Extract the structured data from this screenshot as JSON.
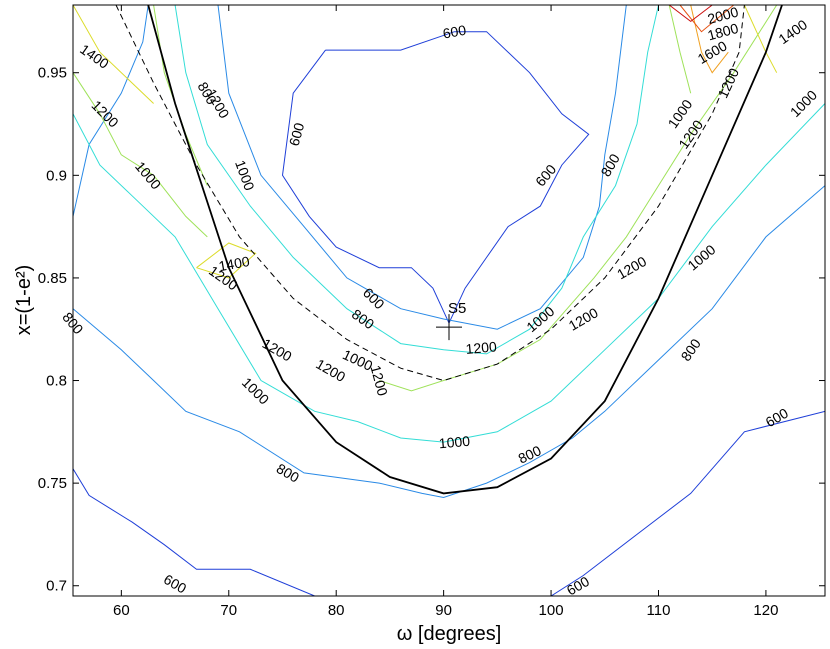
{
  "chart_data": {
    "type": "contour",
    "xlabel": "ω [degrees]",
    "ylabel": "x=(1-e²)",
    "xlim": [
      55.5,
      125.5
    ],
    "ylim": [
      0.695,
      0.983
    ],
    "xticks": [
      60,
      70,
      80,
      90,
      100,
      110,
      120
    ],
    "yticks": [
      0.7,
      0.75,
      0.8,
      0.85,
      0.9,
      0.95
    ],
    "grid": false,
    "colors": {
      "600": "#1f3fd8",
      "800": "#2a8ae6",
      "1000": "#33ddd6",
      "1200": "#9fe25a",
      "1400": "#dcdc2a",
      "1600": "#f0a020",
      "1800": "#e65010",
      "2000": "#cc1010"
    },
    "contours": [
      {
        "level": 600,
        "segments": [
          [
            [
              79,
              0.961
            ],
            [
              86,
              0.961
            ],
            [
              91,
              0.97
            ],
            [
              94,
              0.97
            ],
            [
              98,
              0.95
            ],
            [
              101,
              0.93
            ],
            [
              103.5,
              0.92
            ],
            [
              101,
              0.905
            ],
            [
              99,
              0.885
            ],
            [
              96,
              0.875
            ],
            [
              94,
              0.86
            ],
            [
              92,
              0.845
            ],
            [
              90.5,
              0.828
            ]
          ],
          [
            [
              90.5,
              0.828
            ],
            [
              89,
              0.845
            ],
            [
              87,
              0.855
            ],
            [
              84,
              0.855
            ],
            [
              80,
              0.865
            ],
            [
              77.5,
              0.88
            ],
            [
              75,
              0.9
            ],
            [
              76,
              0.94
            ],
            [
              79,
              0.961
            ]
          ],
          [
            [
              55.5,
              0.757
            ],
            [
              57,
              0.744
            ],
            [
              61,
              0.731
            ],
            [
              64,
              0.72
            ],
            [
              67,
              0.708
            ],
            [
              72,
              0.708
            ],
            [
              78,
              0.695
            ]
          ],
          [
            [
              100,
              0.695
            ],
            [
              103,
              0.705
            ],
            [
              108,
              0.725
            ],
            [
              113,
              0.745
            ],
            [
              118,
              0.775
            ],
            [
              125.5,
              0.785
            ]
          ]
        ]
      },
      {
        "level": 800,
        "segments": [
          [
            [
              62.5,
              0.983
            ],
            [
              62,
              0.965
            ],
            [
              60,
              0.94
            ],
            [
              57,
              0.915
            ],
            [
              55.5,
              0.88
            ]
          ],
          [
            [
              55.5,
              0.835
            ],
            [
              60,
              0.815
            ],
            [
              63,
              0.8
            ],
            [
              66,
              0.785
            ],
            [
              71,
              0.775
            ],
            [
              77,
              0.755
            ],
            [
              84,
              0.75
            ],
            [
              88,
              0.745
            ],
            [
              90,
              0.743
            ],
            [
              94,
              0.75
            ],
            [
              98,
              0.76
            ],
            [
              102,
              0.772
            ],
            [
              105,
              0.785
            ],
            [
              110,
              0.81
            ],
            [
              115,
              0.835
            ],
            [
              120,
              0.87
            ],
            [
              125.5,
              0.895
            ]
          ],
          [
            [
              69,
              0.983
            ],
            [
              70,
              0.94
            ],
            [
              73,
              0.9
            ],
            [
              77,
              0.875
            ],
            [
              81,
              0.85
            ],
            [
              86,
              0.835
            ],
            [
              90,
              0.83
            ],
            [
              95,
              0.825
            ],
            [
              99,
              0.835
            ],
            [
              103,
              0.86
            ],
            [
              104.5,
              0.885
            ],
            [
              105,
              0.91
            ],
            [
              106,
              0.94
            ],
            [
              107,
              0.983
            ]
          ]
        ]
      },
      {
        "level": 1000,
        "segments": [
          [
            [
              55.5,
              0.93
            ],
            [
              58,
              0.905
            ],
            [
              61,
              0.89
            ],
            [
              65,
              0.87
            ],
            [
              69,
              0.835
            ],
            [
              73,
              0.8
            ],
            [
              78,
              0.785
            ],
            [
              82,
              0.78
            ],
            [
              86,
              0.772
            ],
            [
              90,
              0.77
            ],
            [
              95,
              0.775
            ],
            [
              100,
              0.79
            ],
            [
              105,
              0.815
            ],
            [
              110,
              0.84
            ],
            [
              115,
              0.875
            ],
            [
              120,
              0.905
            ],
            [
              125.5,
              0.935
            ]
          ],
          [
            [
              65,
              0.983
            ],
            [
              66,
              0.95
            ],
            [
              68,
              0.915
            ],
            [
              72,
              0.885
            ],
            [
              76,
              0.86
            ],
            [
              81,
              0.835
            ],
            [
              86,
              0.818
            ],
            [
              90,
              0.815
            ],
            [
              94,
              0.813
            ],
            [
              98,
              0.825
            ],
            [
              101,
              0.845
            ],
            [
              103,
              0.87
            ],
            [
              106,
              0.895
            ],
            [
              108,
              0.925
            ],
            [
              109,
              0.96
            ],
            [
              110,
              0.983
            ]
          ]
        ]
      },
      {
        "level": 1200,
        "segments": [
          [
            [
              55.5,
              0.95
            ],
            [
              58,
              0.93
            ],
            [
              60,
              0.91
            ],
            [
              63,
              0.9
            ],
            [
              66,
              0.88
            ],
            [
              68,
              0.87
            ]
          ],
          [
            [
              63,
              0.983
            ],
            [
              64,
              0.95
            ],
            [
              66,
              0.92
            ],
            [
              68,
              0.895
            ]
          ],
          [
            [
              84,
              0.8
            ],
            [
              87,
              0.795
            ],
            [
              90,
              0.8
            ],
            [
              95,
              0.808
            ],
            [
              99,
              0.82
            ],
            [
              102,
              0.838
            ],
            [
              104,
              0.85
            ],
            [
              107,
              0.87
            ],
            [
              110,
              0.895
            ],
            [
              113,
              0.92
            ],
            [
              117,
              0.95
            ],
            [
              121,
              0.983
            ]
          ],
          [
            [
              111,
              0.983
            ],
            [
              112,
              0.96
            ],
            [
              113,
              0.94
            ]
          ]
        ]
      },
      {
        "level": 1400,
        "segments": [
          [
            [
              55.5,
              0.983
            ],
            [
              58,
              0.96
            ],
            [
              61,
              0.945
            ],
            [
              63,
              0.935
            ]
          ],
          [
            [
              67,
              0.855
            ],
            [
              70,
              0.867
            ],
            [
              72.5,
              0.862
            ],
            [
              70,
              0.85
            ],
            [
              67,
              0.855
            ]
          ],
          [
            [
              118,
              0.983
            ],
            [
              120,
              0.96
            ],
            [
              121,
              0.95
            ]
          ]
        ]
      },
      {
        "level": 1600,
        "segments": [
          [
            [
              113,
              0.983
            ],
            [
              114,
              0.96
            ],
            [
              115,
              0.95
            ],
            [
              116.5,
              0.96
            ]
          ]
        ]
      },
      {
        "level": 1800,
        "segments": [
          [
            [
              112,
              0.983
            ],
            [
              114,
              0.97
            ],
            [
              117,
              0.983
            ]
          ]
        ]
      },
      {
        "level": 2000,
        "segments": [
          [
            [
              111,
              0.983
            ],
            [
              113,
              0.975
            ],
            [
              115,
              0.983
            ]
          ]
        ]
      }
    ],
    "contour_labels": [
      {
        "text": "600",
        "x": 91,
        "y": 0.97,
        "rot": -10
      },
      {
        "text": "600",
        "x": 76.3,
        "y": 0.92,
        "rot": -75
      },
      {
        "text": "600",
        "x": 99.5,
        "y": 0.9,
        "rot": -50
      },
      {
        "text": "600",
        "x": 83.5,
        "y": 0.84,
        "rot": 45
      },
      {
        "text": "600",
        "x": 65,
        "y": 0.701,
        "rot": 30
      },
      {
        "text": "600",
        "x": 102.5,
        "y": 0.7,
        "rot": -30
      },
      {
        "text": "600",
        "x": 121,
        "y": 0.782,
        "rot": -30
      },
      {
        "text": "800",
        "x": 68,
        "y": 0.94,
        "rot": 60
      },
      {
        "text": "800",
        "x": 55.5,
        "y": 0.828,
        "rot": 50
      },
      {
        "text": "800",
        "x": 75.5,
        "y": 0.755,
        "rot": 30
      },
      {
        "text": "800",
        "x": 98,
        "y": 0.764,
        "rot": -25
      },
      {
        "text": "800",
        "x": 113,
        "y": 0.815,
        "rot": -55
      },
      {
        "text": "800",
        "x": 82.5,
        "y": 0.83,
        "rot": 35
      },
      {
        "text": "800",
        "x": 105.5,
        "y": 0.905,
        "rot": -60
      },
      {
        "text": "1000",
        "x": 62.5,
        "y": 0.9,
        "rot": 50
      },
      {
        "text": "1000",
        "x": 72.5,
        "y": 0.795,
        "rot": 45
      },
      {
        "text": "1000",
        "x": 91,
        "y": 0.77,
        "rot": -5
      },
      {
        "text": "1000",
        "x": 114,
        "y": 0.86,
        "rot": -40
      },
      {
        "text": "1000",
        "x": 71.5,
        "y": 0.9,
        "rot": 70
      },
      {
        "text": "1000",
        "x": 82,
        "y": 0.81,
        "rot": 25
      },
      {
        "text": "1000",
        "x": 99,
        "y": 0.83,
        "rot": -40
      },
      {
        "text": "1000",
        "x": 112,
        "y": 0.93,
        "rot": -55
      },
      {
        "text": "1000",
        "x": 123.5,
        "y": 0.935,
        "rot": -45
      },
      {
        "text": "1200",
        "x": 58.5,
        "y": 0.93,
        "rot": 45
      },
      {
        "text": "1200",
        "x": 69,
        "y": 0.935,
        "rot": 60
      },
      {
        "text": "1200",
        "x": 69.5,
        "y": 0.85,
        "rot": 35
      },
      {
        "text": "1200",
        "x": 74.5,
        "y": 0.815,
        "rot": 30
      },
      {
        "text": "1200",
        "x": 79.5,
        "y": 0.805,
        "rot": 30
      },
      {
        "text": "1200",
        "x": 84,
        "y": 0.8,
        "rot": 75
      },
      {
        "text": "1200",
        "x": 93.5,
        "y": 0.816,
        "rot": -5
      },
      {
        "text": "1200",
        "x": 103,
        "y": 0.83,
        "rot": -30
      },
      {
        "text": "1200",
        "x": 107.5,
        "y": 0.855,
        "rot": -30
      },
      {
        "text": "1200",
        "x": 113,
        "y": 0.92,
        "rot": -55
      },
      {
        "text": "1200",
        "x": 116.5,
        "y": 0.945,
        "rot": -65
      },
      {
        "text": "1400",
        "x": 57.5,
        "y": 0.958,
        "rot": 35
      },
      {
        "text": "1400",
        "x": 70.5,
        "y": 0.857,
        "rot": -10
      },
      {
        "text": "1400",
        "x": 122.5,
        "y": 0.97,
        "rot": -35
      },
      {
        "text": "1600",
        "x": 115,
        "y": 0.96,
        "rot": -30
      },
      {
        "text": "1800",
        "x": 116,
        "y": 0.97,
        "rot": -15
      },
      {
        "text": "2000",
        "x": 116,
        "y": 0.978,
        "rot": -15
      }
    ],
    "boundary_curve": [
      [
        62.5,
        0.983
      ],
      [
        65,
        0.935
      ],
      [
        70,
        0.855
      ],
      [
        75,
        0.8
      ],
      [
        80,
        0.77
      ],
      [
        85,
        0.753
      ],
      [
        90,
        0.745
      ],
      [
        95,
        0.748
      ],
      [
        100,
        0.762
      ],
      [
        105,
        0.79
      ],
      [
        110,
        0.84
      ],
      [
        115,
        0.9
      ],
      [
        120,
        0.96
      ],
      [
        121.5,
        0.983
      ]
    ],
    "dashed_curve": [
      [
        59.5,
        0.983
      ],
      [
        63,
        0.945
      ],
      [
        67,
        0.905
      ],
      [
        71,
        0.87
      ],
      [
        76,
        0.84
      ],
      [
        81,
        0.82
      ],
      [
        86,
        0.806
      ],
      [
        90,
        0.8
      ],
      [
        95,
        0.808
      ],
      [
        100,
        0.825
      ],
      [
        105,
        0.85
      ],
      [
        110,
        0.885
      ],
      [
        115,
        0.93
      ],
      [
        117.5,
        0.96
      ],
      [
        118,
        0.983
      ]
    ],
    "marker": {
      "label": "S5",
      "x": 90.5,
      "y": 0.826
    }
  }
}
